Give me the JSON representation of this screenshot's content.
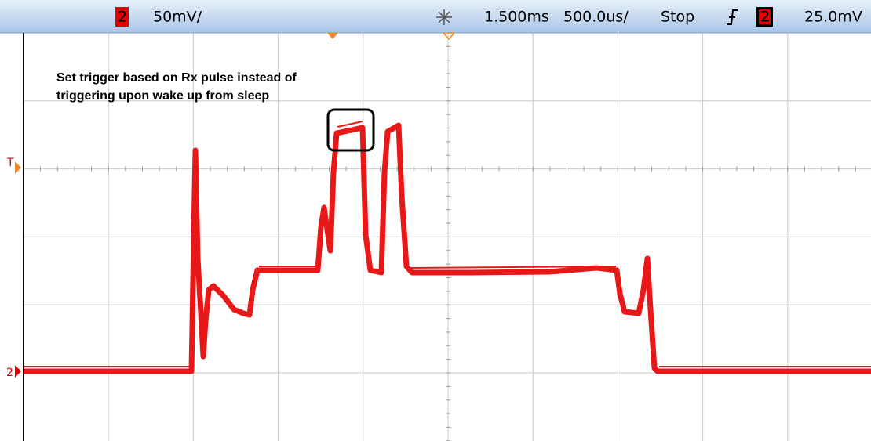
{
  "header": {
    "channel": "2",
    "scale": "50mV/",
    "delay": "1.500ms",
    "timebase": "500.0us/",
    "status": "Stop",
    "trigger_channel": "2",
    "trigger_level": "25.0mV"
  },
  "markers": {
    "trigger": "T",
    "ground": "2"
  },
  "annotation": [
    "Set trigger based on Rx pulse instead of",
    "triggering upon wake up from sleep"
  ]
}
